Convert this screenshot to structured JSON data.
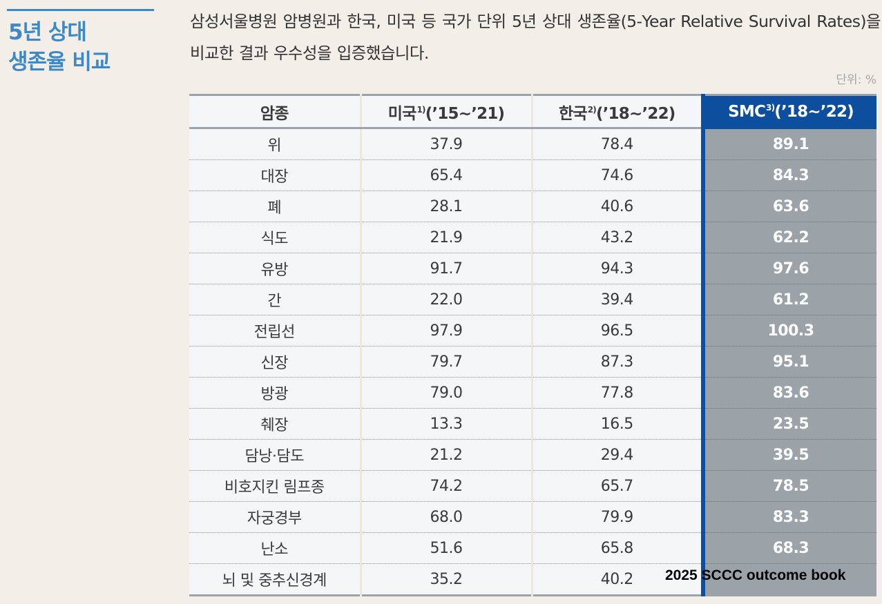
{
  "sidebar": {
    "title_line1": "5년 상대",
    "title_line2": "생존율 비교"
  },
  "intro": "삼성서울병원 암병원과 한국, 미국 등 국가 단위 5년 상대 생존율(5-Year Relative Survival Rates)을 비교한 결과 우수성을 입증했습니다.",
  "unit_label": "단위: %",
  "table": {
    "headers": [
      {
        "label": "암종",
        "sup": "",
        "period": ""
      },
      {
        "label": "미국",
        "sup": "1)",
        "period": "(’15~’21)"
      },
      {
        "label": "한국",
        "sup": "2)",
        "period": "(’18~’22)"
      },
      {
        "label": "SMC",
        "sup": "3)",
        "period": "(’18~’22)"
      }
    ],
    "rows": [
      {
        "cancer": "위",
        "us": "37.9",
        "korea": "78.4",
        "smc": "89.1"
      },
      {
        "cancer": "대장",
        "us": "65.4",
        "korea": "74.6",
        "smc": "84.3"
      },
      {
        "cancer": "폐",
        "us": "28.1",
        "korea": "40.6",
        "smc": "63.6"
      },
      {
        "cancer": "식도",
        "us": "21.9",
        "korea": "43.2",
        "smc": "62.2"
      },
      {
        "cancer": "유방",
        "us": "91.7",
        "korea": "94.3",
        "smc": "97.6"
      },
      {
        "cancer": "간",
        "us": "22.0",
        "korea": "39.4",
        "smc": "61.2"
      },
      {
        "cancer": "전립선",
        "us": "97.9",
        "korea": "96.5",
        "smc": "100.3"
      },
      {
        "cancer": "신장",
        "us": "79.7",
        "korea": "87.3",
        "smc": "95.1"
      },
      {
        "cancer": "방광",
        "us": "79.0",
        "korea": "77.8",
        "smc": "83.6"
      },
      {
        "cancer": "췌장",
        "us": "13.3",
        "korea": "16.5",
        "smc": "23.5"
      },
      {
        "cancer": "담낭·담도",
        "us": "21.2",
        "korea": "29.4",
        "smc": "39.5"
      },
      {
        "cancer": "비호지킨 림프종",
        "us": "74.2",
        "korea": "65.7",
        "smc": "78.5"
      },
      {
        "cancer": "자궁경부",
        "us": "68.0",
        "korea": "79.9",
        "smc": "83.3"
      },
      {
        "cancer": "난소",
        "us": "51.6",
        "korea": "65.8",
        "smc": "68.3"
      },
      {
        "cancer": "뇌 및 중추신경계",
        "us": "35.2",
        "korea": "40.2",
        "smc": ""
      }
    ]
  },
  "watermark": "2025 SCCC outcome book",
  "colors": {
    "background": "#f3efe8",
    "accent_blue": "#3d88c6",
    "smc_header": "#0e4e9e",
    "smc_cell": "#9ca3a8"
  }
}
